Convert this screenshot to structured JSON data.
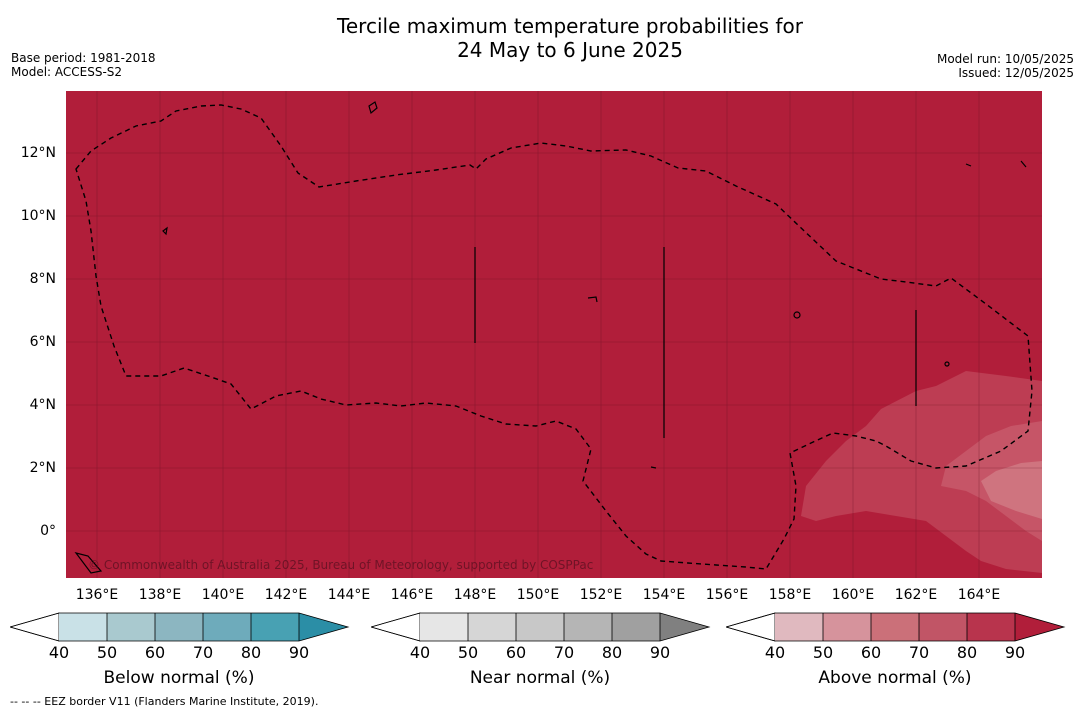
{
  "title_line1": "Tercile maximum temperature probabilities for",
  "title_line2": "24 May to 6 June 2025",
  "meta_left": {
    "base_period": "Base period: 1981-2018",
    "model": "Model: ACCESS-S2"
  },
  "meta_right": {
    "model_run": "Model run: 10/05/2025",
    "issued": "Issued: 12/05/2025"
  },
  "map": {
    "lat_labels": [
      "12°N",
      "10°N",
      "8°N",
      "6°N",
      "4°N",
      "2°N",
      "0°"
    ],
    "lon_labels": [
      "136°E",
      "138°E",
      "140°E",
      "142°E",
      "144°E",
      "146°E",
      "148°E",
      "150°E",
      "152°E",
      "154°E",
      "156°E",
      "158°E",
      "160°E",
      "162°E",
      "164°E"
    ],
    "copyright": "© Commonwealth of Australia 2025, Bureau of Meteorology, supported by COSPPac",
    "dominant_category": "Above normal, 80-90%",
    "colors": {
      "above_90": "#b11e3a",
      "above_80": "#bd3d53",
      "above_70": "#c65567",
      "above_60": "#cf747f"
    }
  },
  "colorbars": [
    {
      "title": "Below normal (%)",
      "ticks": [
        "40",
        "50",
        "60",
        "70",
        "80",
        "90"
      ],
      "colors": [
        "#c9e1e7",
        "#a9c9cf",
        "#8cb6c1",
        "#6eabbb",
        "#48a1b3",
        "#2b8ea6"
      ]
    },
    {
      "title": "Near normal (%)",
      "ticks": [
        "40",
        "50",
        "60",
        "70",
        "80",
        "90"
      ],
      "colors": [
        "#e6e6e6",
        "#d6d6d6",
        "#c8c8c8",
        "#b5b5b5",
        "#a0a0a0",
        "#808080"
      ]
    },
    {
      "title": "Above normal (%)",
      "ticks": [
        "40",
        "50",
        "60",
        "70",
        "80",
        "90"
      ],
      "colors": [
        "#e0b9bf",
        "#d6939c",
        "#cb7079",
        "#c15566",
        "#b8344d",
        "#b11e3a"
      ]
    }
  ],
  "footnote": "--  --  -- EEZ border V11 (Flanders Marine Institute, 2019)."
}
